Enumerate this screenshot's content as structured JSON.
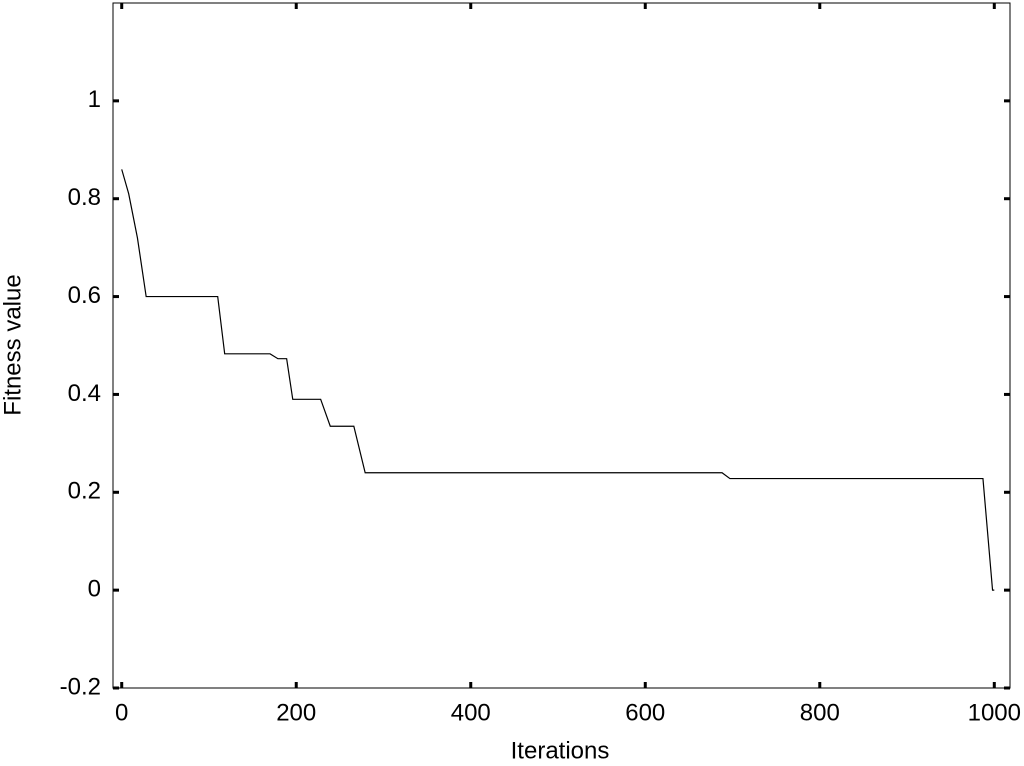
{
  "chart_data": {
    "type": "line",
    "xlabel": "Iterations",
    "ylabel": "Fitness value",
    "x": [
      0,
      8,
      18,
      28,
      110,
      118,
      170,
      179,
      189,
      196,
      228,
      239,
      266,
      279,
      688,
      697,
      987,
      998,
      1000
    ],
    "values": [
      0.86,
      0.81,
      0.72,
      0.6,
      0.6,
      0.483,
      0.483,
      0.473,
      0.473,
      0.39,
      0.39,
      0.335,
      0.335,
      0.24,
      0.24,
      0.228,
      0.228,
      0,
      0
    ],
    "color": "#000000",
    "xlim": [
      -10,
      1018
    ],
    "ylim": [
      -0.2,
      1.2
    ],
    "xticks": [
      0,
      200,
      400,
      600,
      800,
      1000
    ],
    "yticks": [
      -0.2,
      0,
      0.2,
      0.4,
      0.6,
      0.8,
      1
    ],
    "grid": false
  }
}
